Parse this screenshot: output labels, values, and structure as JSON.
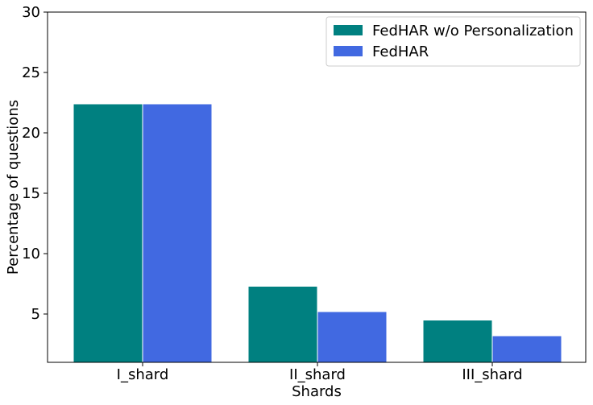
{
  "chart_data": {
    "type": "bar",
    "categories": [
      "I_shard",
      "II_shard",
      "III_shard"
    ],
    "series": [
      {
        "name": "FedHAR w/o Personalization",
        "values": [
          22.4,
          7.3,
          4.5
        ],
        "color": "#008080"
      },
      {
        "name": "FedHAR",
        "values": [
          22.4,
          5.2,
          3.2
        ],
        "color": "#4169E1"
      }
    ],
    "xlabel": "Shards",
    "ylabel": "Percentage of questions",
    "ylim": [
      1,
      30
    ],
    "yticks": [
      5,
      10,
      15,
      20,
      25,
      30
    ],
    "grid": false,
    "legend_position": "top-right"
  }
}
